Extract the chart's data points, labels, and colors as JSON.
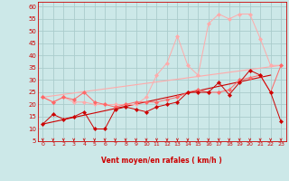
{
  "background_color": "#cce8e8",
  "grid_color": "#aacccc",
  "xlabel": "Vent moyen/en rafales ( km/h )",
  "xlabel_color": "#cc0000",
  "tick_color": "#cc0000",
  "ylim": [
    5,
    62
  ],
  "xlim": [
    -0.5,
    23.5
  ],
  "yticks": [
    5,
    10,
    15,
    20,
    25,
    30,
    35,
    40,
    45,
    50,
    55,
    60
  ],
  "xticks": [
    0,
    1,
    2,
    3,
    4,
    5,
    6,
    7,
    8,
    9,
    10,
    11,
    12,
    13,
    14,
    15,
    16,
    17,
    18,
    19,
    20,
    21,
    22,
    23
  ],
  "x": [
    0,
    1,
    2,
    3,
    4,
    5,
    6,
    7,
    8,
    9,
    10,
    11,
    12,
    13,
    14,
    15,
    16,
    17,
    18,
    19,
    20,
    21,
    22,
    23
  ],
  "line1_y": [
    23,
    21,
    23,
    21,
    21,
    20,
    20,
    20,
    20,
    20,
    23,
    32,
    37,
    48,
    36,
    32,
    53,
    57,
    55,
    57,
    57,
    47,
    36,
    36
  ],
  "line1_color": "#ffaaaa",
  "line2_y": [
    23,
    21,
    23,
    22,
    25,
    21,
    20,
    19,
    20,
    21,
    21,
    21,
    22,
    23,
    25,
    26,
    25,
    25,
    26,
    30,
    31,
    32,
    25,
    36
  ],
  "line2_color": "#ff6666",
  "line3_y": [
    12,
    16,
    14,
    15,
    17,
    10,
    10,
    18,
    19,
    18,
    17,
    19,
    20,
    21,
    25,
    25,
    25,
    29,
    24,
    29,
    34,
    32,
    25,
    13
  ],
  "line3_color": "#cc0000",
  "line4_color": "#ffaaaa",
  "line5_color": "#cc0000",
  "trend1_x": [
    0,
    23
  ],
  "trend1_y": [
    23,
    36
  ],
  "trend2_x": [
    0,
    22
  ],
  "trend2_y": [
    12,
    32
  ]
}
